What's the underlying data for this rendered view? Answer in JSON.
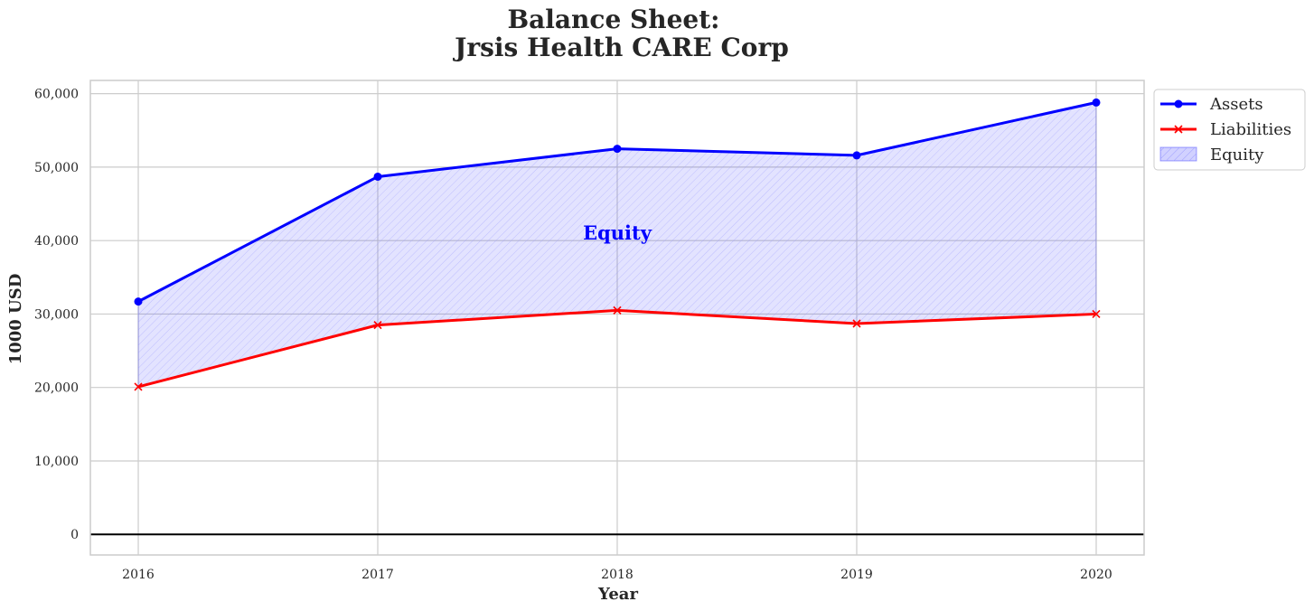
{
  "chart_data": {
    "type": "area",
    "title_line1": "Balance Sheet:",
    "title_line2": "Jrsis Health CARE Corp",
    "xlabel": "Year",
    "ylabel": "1000 USD",
    "x": [
      2016,
      2017,
      2018,
      2019,
      2020
    ],
    "x_tick_labels": [
      "2016",
      "2017",
      "2018",
      "2019",
      "2020"
    ],
    "ylim": [
      -2800,
      61800
    ],
    "y_ticks": [
      0,
      10000,
      20000,
      30000,
      40000,
      50000,
      60000
    ],
    "y_tick_labels": [
      "0",
      "10,000",
      "20,000",
      "30,000",
      "40,000",
      "50,000",
      "60,000"
    ],
    "grid": true,
    "legend_position": "outside-top-right",
    "series": [
      {
        "name": "Assets",
        "values": [
          31700,
          48700,
          52500,
          51600,
          58800
        ],
        "color": "#0000ff",
        "marker": "circle"
      },
      {
        "name": "Liabilities",
        "values": [
          20100,
          28500,
          30500,
          28700,
          30000
        ],
        "color": "#ff0000",
        "marker": "x"
      }
    ],
    "fill": {
      "name": "Equity",
      "between": [
        "Assets",
        "Liabilities"
      ],
      "color": "#0000ff",
      "hatch": "////"
    },
    "annotations": [
      {
        "text": "Equity",
        "x": 2018,
        "y": 41000,
        "color": "#0000ff"
      }
    ],
    "legend": [
      "Assets",
      "Liabilities",
      "Equity"
    ]
  }
}
